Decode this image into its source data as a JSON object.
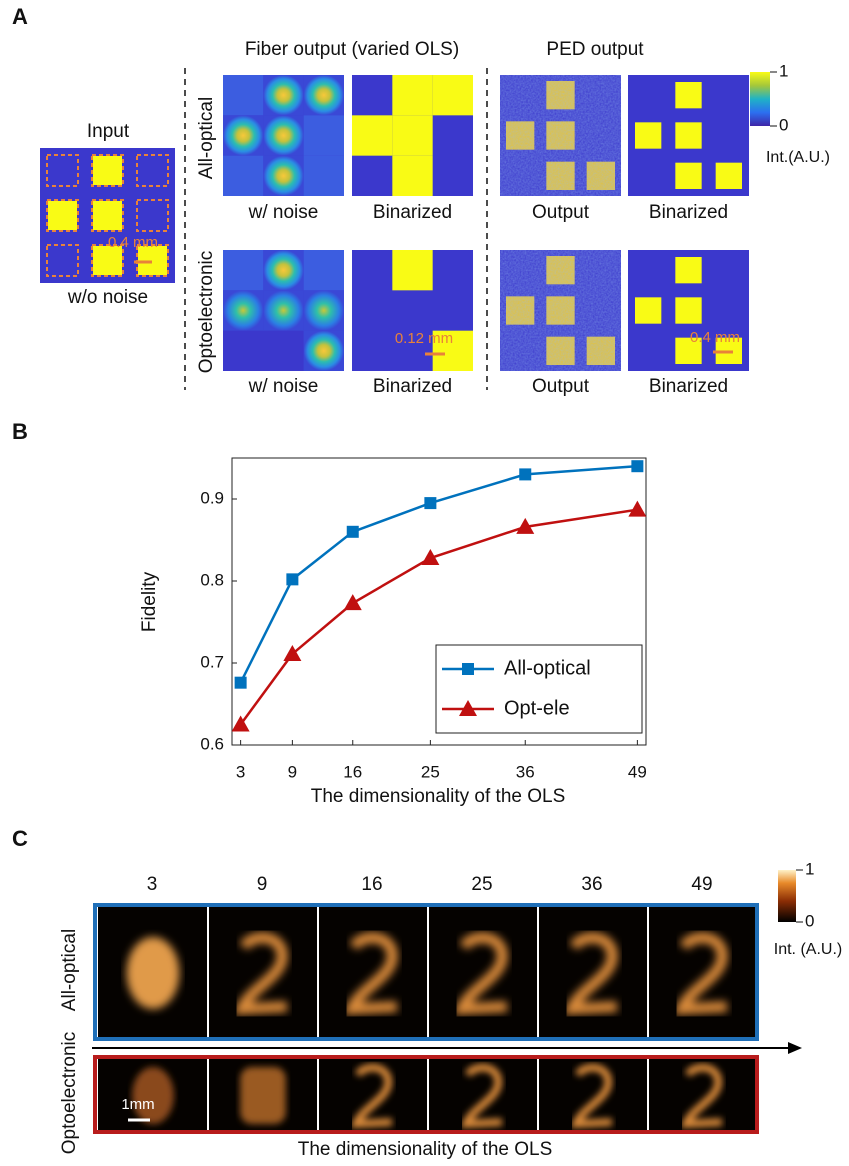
{
  "panel_a": {
    "label": "A",
    "fiber_title": "Fiber output (varied OLS)",
    "ped_title": "PED output",
    "input_title": "Input",
    "input_caption": "w/o noise",
    "input_scale": "0.4 mm",
    "rows": [
      {
        "label": "All-optical",
        "captions": [
          "w/ noise",
          "Binarized",
          "Output",
          "Binarized"
        ]
      },
      {
        "label": "Optoelectronic",
        "captions": [
          "w/ noise",
          "Binarized",
          "Output",
          "Binarized"
        ],
        "fiber_scale": "0.12 mm",
        "ped_scale": "0.4 mm"
      }
    ],
    "colorbar": {
      "ticks": [
        0,
        1
      ],
      "label": "Int.(A.U.)"
    }
  },
  "chart_data": {
    "type": "line",
    "panel_label": "B",
    "x_label": "The dimensionality of the OLS",
    "y_label": "Fidelity",
    "x": [
      3,
      9,
      16,
      25,
      36,
      49
    ],
    "series": [
      {
        "name": "All-optical",
        "color": "#0072bd",
        "marker": "square",
        "values": [
          0.676,
          0.802,
          0.86,
          0.895,
          0.93,
          0.94
        ]
      },
      {
        "name": "Opt-ele",
        "color": "#c01010",
        "marker": "triangle",
        "values": [
          0.625,
          0.711,
          0.773,
          0.828,
          0.866,
          0.887
        ]
      }
    ],
    "xlim": [
      2,
      50
    ],
    "xticks": [
      3,
      9,
      16,
      25,
      36,
      49
    ],
    "ylim": [
      0.6,
      0.95
    ],
    "yticks": [
      0.6,
      0.7,
      0.8,
      0.9
    ],
    "legend": "lower right"
  },
  "panel_c": {
    "label": "C",
    "columns": [
      3,
      9,
      16,
      25,
      36,
      49
    ],
    "rows": [
      "All-optical",
      "Optoelectronic"
    ],
    "x_label": "The dimensionality of the OLS",
    "scale": "1mm",
    "colorbar": {
      "ticks": [
        0,
        1
      ],
      "label": "Int. (A.U.)"
    }
  }
}
